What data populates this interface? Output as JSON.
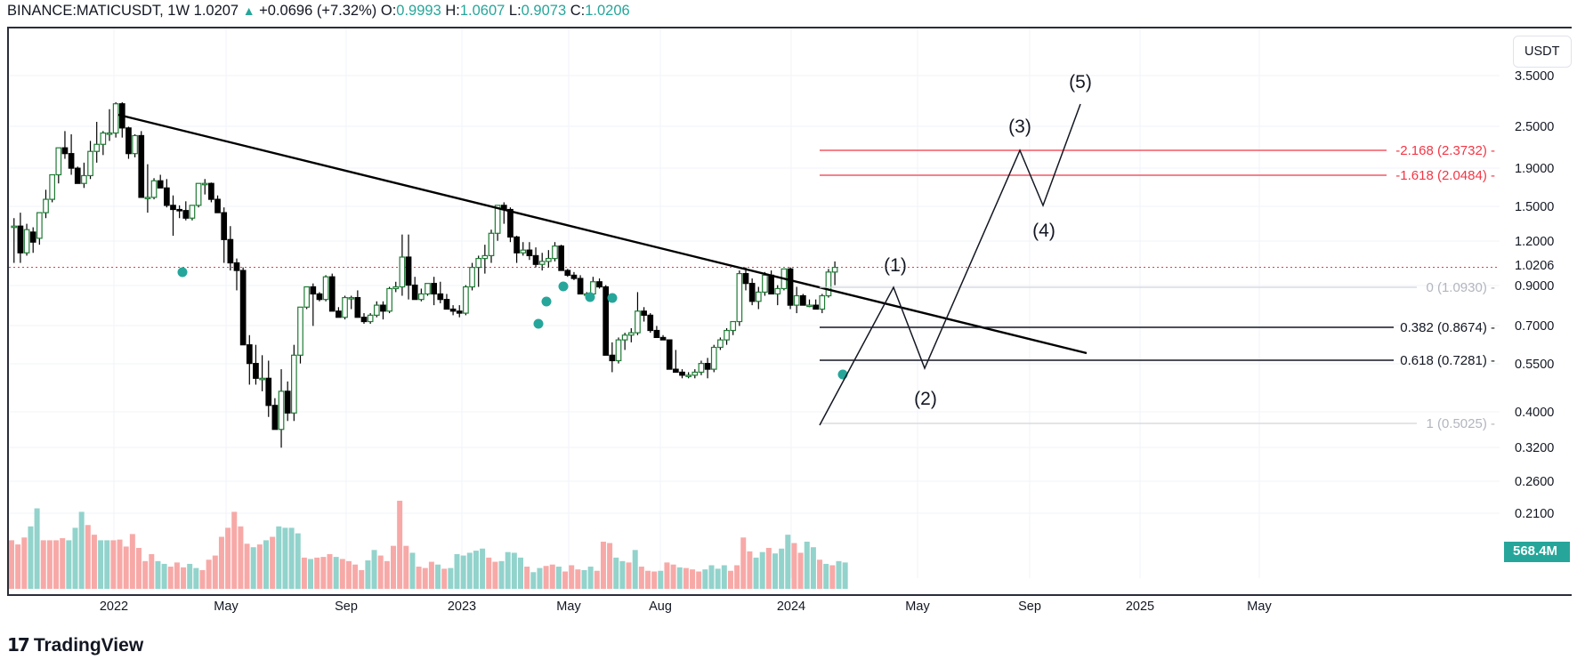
{
  "header": {
    "symbol": "BINANCE:MATICUSDT, 1W",
    "last": "1.0207",
    "change": "+0.0696 (+7.32%)",
    "o_label": "O:",
    "o": "0.9993",
    "h_label": "H:",
    "h": "1.0607",
    "l_label": "L:",
    "l": "0.9073",
    "c_label": "C:",
    "c": "1.0206"
  },
  "axis": {
    "unit": "USDT",
    "price_ticks": [
      "3.5000",
      "2.5000",
      "1.9000",
      "1.5000",
      "1.2000",
      "0.9000",
      "0.7000",
      "0.5500",
      "0.4000",
      "0.3200",
      "0.2600",
      "0.2100"
    ],
    "current_price": "1.0206",
    "volume_badge": "568.4M",
    "time_ticks": [
      "2022",
      "May",
      "Sep",
      "2023",
      "May",
      "Aug",
      "2024",
      "May",
      "Sep",
      "2025",
      "May"
    ]
  },
  "fib": [
    {
      "label": "-2.168 (2.3732)",
      "color": "#f23645"
    },
    {
      "label": "-1.618 (2.0484)",
      "color": "#f23645"
    },
    {
      "label": "0 (1.0930)",
      "color": "#b2b5be"
    },
    {
      "label": "0.382 (0.8674)",
      "color": "#131722"
    },
    {
      "label": "0.618 (0.7281)",
      "color": "#131722"
    },
    {
      "label": "1 (0.5025)",
      "color": "#b2b5be"
    }
  ],
  "waves": [
    "(1)",
    "(2)",
    "(3)",
    "(4)",
    "(5)"
  ],
  "branding": {
    "logo_text": "TradingView"
  },
  "colors": {
    "up": "#26a69a",
    "down_candle": "#000000",
    "up_candle": "#1e7b34",
    "vol_up": "#92d3cc",
    "vol_down": "#f7a9a7",
    "fib_red": "#f23645",
    "grid": "#f0f3fa"
  },
  "chart_data": {
    "type": "candlestick",
    "title": "BINANCE:MATICUSDT, 1W",
    "ylabel": "USDT",
    "yscale": "log",
    "ylim": [
      0.19,
      4.2
    ],
    "x_ticks": [
      "2022",
      "May",
      "Sep",
      "2023",
      "May",
      "Aug",
      "2024",
      "May",
      "Sep",
      "2025",
      "May"
    ],
    "last_close": 1.0206,
    "fib_levels": [
      {
        "ratio": -2.168,
        "price": 2.3732
      },
      {
        "ratio": -1.618,
        "price": 2.0484
      },
      {
        "ratio": 0,
        "price": 1.093
      },
      {
        "ratio": 0.382,
        "price": 0.8674
      },
      {
        "ratio": 0.618,
        "price": 0.7281
      },
      {
        "ratio": 1,
        "price": 0.5025
      }
    ],
    "trendline": {
      "from": {
        "date": "2021-12",
        "price": 2.9
      },
      "to": {
        "date": "2024-05",
        "price": 0.76
      }
    },
    "elliott_wave_projection": [
      {
        "label": "start",
        "date": "2023-10",
        "price": 0.5
      },
      {
        "label": "(1)",
        "date": "2024-01",
        "price": 1.09
      },
      {
        "label": "(2)",
        "date": "2024-01",
        "price": 0.7
      },
      {
        "label": "(3)",
        "date": "2024-04",
        "price": 2.37
      },
      {
        "label": "(4)",
        "date": "2024-05",
        "price": 1.78
      },
      {
        "label": "(5)",
        "date": "2024-06",
        "price": 3.6
      }
    ],
    "volume_last": "568.4M"
  }
}
